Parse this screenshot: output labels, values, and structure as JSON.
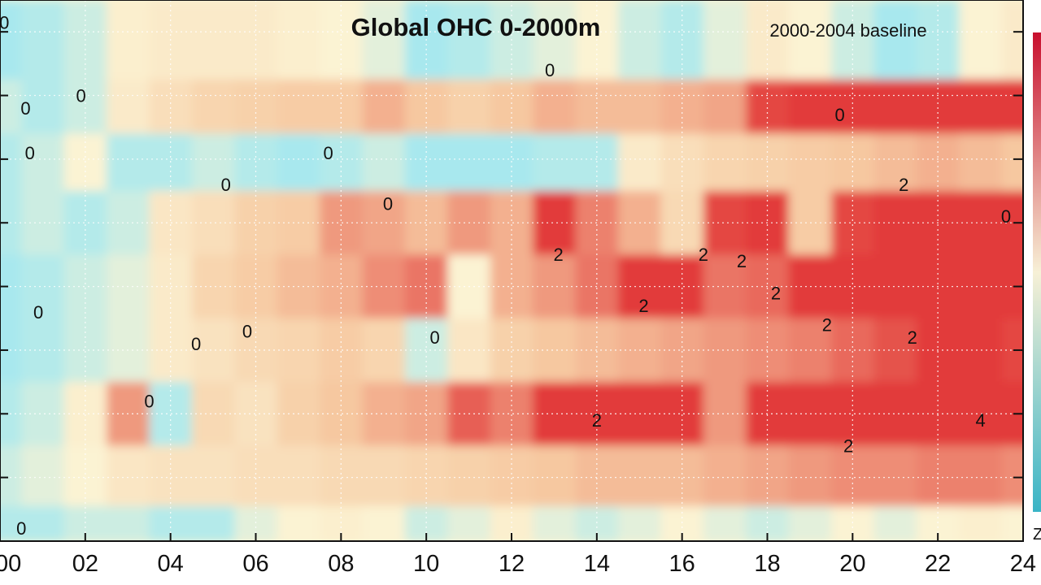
{
  "chart_data": {
    "type": "heatmap",
    "title": "Global OHC 0-2000m",
    "subtitle": "2000-2004 baseline",
    "xlabel": "",
    "ylabel": "",
    "x_ticks": [
      "00",
      "02",
      "04",
      "06",
      "08",
      "10",
      "12",
      "14",
      "16",
      "18",
      "20",
      "22",
      "24"
    ],
    "xlim": [
      0,
      24
    ],
    "contour_levels": [
      0,
      2,
      4
    ],
    "contour_labels": [
      {
        "text": "0",
        "x": 0.1,
        "y": 8.05
      },
      {
        "text": "0",
        "x": 0.6,
        "y": 6.7
      },
      {
        "text": "0",
        "x": 1.9,
        "y": 6.9
      },
      {
        "text": "0",
        "x": 0.7,
        "y": 6.0
      },
      {
        "text": "0",
        "x": 5.3,
        "y": 5.5
      },
      {
        "text": "0",
        "x": 7.7,
        "y": 6.0
      },
      {
        "text": "0",
        "x": 9.1,
        "y": 5.2
      },
      {
        "text": "0",
        "x": 0.9,
        "y": 3.5
      },
      {
        "text": "0",
        "x": 5.8,
        "y": 3.2
      },
      {
        "text": "0",
        "x": 4.6,
        "y": 3.0
      },
      {
        "text": "0",
        "x": 10.2,
        "y": 3.1
      },
      {
        "text": "0",
        "x": 3.5,
        "y": 2.1
      },
      {
        "text": "0",
        "x": 0.5,
        "y": 0.1
      },
      {
        "text": "0",
        "x": 12.9,
        "y": 7.3
      },
      {
        "text": "0",
        "x": 19.7,
        "y": 6.6
      },
      {
        "text": "0",
        "x": 23.6,
        "y": 5.0
      },
      {
        "text": "2",
        "x": 13.1,
        "y": 4.4
      },
      {
        "text": "2",
        "x": 16.5,
        "y": 4.4
      },
      {
        "text": "2",
        "x": 17.4,
        "y": 4.3
      },
      {
        "text": "2",
        "x": 15.1,
        "y": 3.6
      },
      {
        "text": "2",
        "x": 18.2,
        "y": 3.8
      },
      {
        "text": "2",
        "x": 19.4,
        "y": 3.3
      },
      {
        "text": "2",
        "x": 21.4,
        "y": 3.1
      },
      {
        "text": "2",
        "x": 21.2,
        "y": 5.5
      },
      {
        "text": "2",
        "x": 14.0,
        "y": 1.8
      },
      {
        "text": "2",
        "x": 19.9,
        "y": 1.4
      },
      {
        "text": "4",
        "x": 23.0,
        "y": 1.8
      }
    ],
    "bands": [
      {
        "y": 7.7,
        "values": [
          -0.4,
          -0.3,
          -0.2,
          0.1,
          0.2,
          0.2,
          0.2,
          0.1,
          0.0,
          -0.1,
          -0.4,
          -0.3,
          -0.2,
          -0.1,
          0.0,
          -0.2,
          -0.3,
          -0.1,
          0.2,
          0.0,
          -0.2,
          -0.4,
          -0.3,
          0.0,
          0.2
        ]
      },
      {
        "y": 6.8,
        "values": [
          -0.2,
          -0.3,
          -0.2,
          0.2,
          0.5,
          0.7,
          0.8,
          0.9,
          0.9,
          1.2,
          1.0,
          0.8,
          1.0,
          1.2,
          1.1,
          1.1,
          1.2,
          1.3,
          2.1,
          2.4,
          2.5,
          2.6,
          2.7,
          2.6,
          2.5
        ]
      },
      {
        "y": 6.0,
        "values": [
          -0.3,
          -0.2,
          0.0,
          -0.3,
          -0.3,
          -0.2,
          -0.3,
          -0.4,
          -0.3,
          -0.2,
          -0.5,
          -0.5,
          -0.4,
          -0.3,
          -0.3,
          0.2,
          0.5,
          0.7,
          0.8,
          0.9,
          1.0,
          1.1,
          1.2,
          1.1,
          1.0
        ]
      },
      {
        "y": 5.0,
        "values": [
          -0.3,
          -0.2,
          -0.3,
          -0.2,
          0.3,
          0.5,
          0.8,
          0.9,
          1.4,
          1.3,
          1.1,
          1.4,
          1.2,
          2.2,
          1.6,
          1.2,
          0.6,
          2.1,
          2.2,
          0.9,
          2.1,
          2.4,
          2.6,
          2.8,
          2.7
        ]
      },
      {
        "y": 4.0,
        "values": [
          -0.4,
          -0.3,
          -0.2,
          -0.1,
          0.2,
          0.7,
          0.9,
          1.1,
          1.2,
          1.5,
          1.7,
          0.0,
          1.2,
          1.4,
          1.7,
          2.4,
          2.3,
          1.7,
          1.8,
          2.4,
          2.5,
          2.4,
          2.6,
          2.7,
          2.6
        ]
      },
      {
        "y": 3.0,
        "values": [
          -0.4,
          -0.3,
          -0.2,
          -0.1,
          0.2,
          0.4,
          0.6,
          0.7,
          0.9,
          0.7,
          -0.2,
          0.3,
          0.8,
          1.0,
          1.1,
          1.2,
          1.3,
          1.4,
          1.5,
          1.6,
          1.8,
          2.0,
          2.2,
          2.3,
          2.1
        ]
      },
      {
        "y": 2.0,
        "values": [
          -0.3,
          -0.2,
          0.1,
          1.4,
          -0.3,
          0.6,
          0.4,
          0.8,
          1.0,
          1.2,
          1.3,
          1.9,
          1.6,
          2.2,
          2.6,
          2.8,
          2.5,
          1.4,
          2.3,
          2.6,
          2.8,
          3.0,
          3.3,
          3.6,
          3.4
        ]
      },
      {
        "y": 1.0,
        "values": [
          -0.2,
          -0.1,
          0.0,
          0.3,
          0.4,
          0.4,
          0.5,
          0.5,
          0.6,
          0.6,
          0.7,
          0.8,
          0.9,
          1.0,
          1.1,
          1.1,
          1.1,
          1.2,
          1.3,
          1.4,
          1.5,
          1.5,
          1.6,
          1.6,
          1.5
        ]
      },
      {
        "y": 0.1,
        "values": [
          -0.3,
          -0.3,
          -0.2,
          -0.2,
          -0.3,
          -0.3,
          -0.1,
          0.0,
          0.1,
          0.0,
          -0.2,
          -0.1,
          0.1,
          -0.1,
          -0.2,
          -0.1,
          0.0,
          -0.1,
          -0.2,
          -0.1,
          0.0,
          -0.1,
          0.0,
          0.1,
          0.0
        ]
      }
    ],
    "colors": {
      "cold": "#a8e8ee",
      "neutral": "#fbf3d3",
      "warm": "#f6c8a0",
      "hot": "#e23a3a",
      "contour": "#1a1a1a",
      "grid": "#ffffff"
    },
    "grid": true
  },
  "colorbar_label_fragment": "Z"
}
